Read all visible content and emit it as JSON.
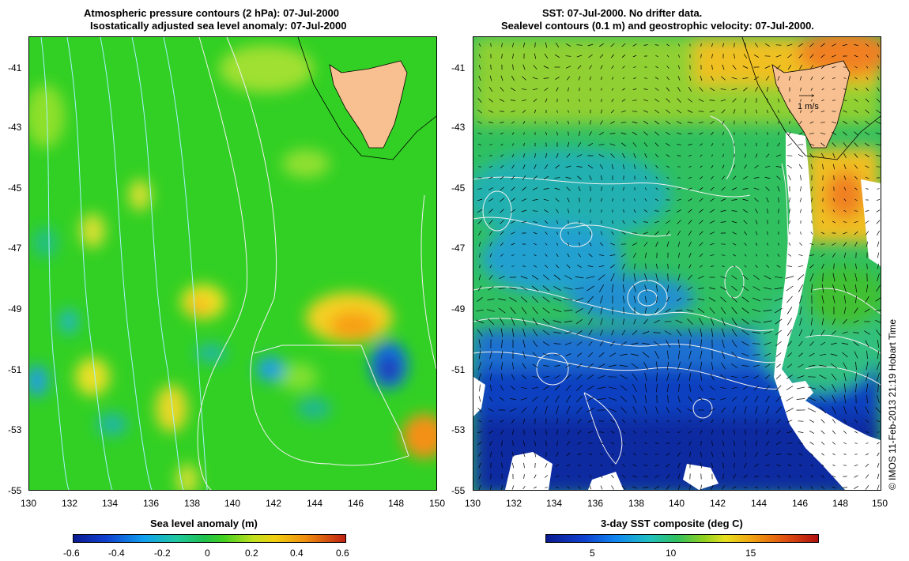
{
  "left_panel": {
    "title_line1": "Atmospheric pressure contours (2 hPa): 07-Jul-2000",
    "title_line2": "Isostatically adjusted sea level anomaly: 07-Jul-2000",
    "lat_ticks": [
      "-41",
      "-43",
      "-45",
      "-47",
      "-49",
      "-51",
      "-53",
      "-55"
    ],
    "lon_ticks": [
      "130",
      "132",
      "134",
      "136",
      "138",
      "140",
      "142",
      "144",
      "146",
      "148",
      "150"
    ],
    "colorbar_label": "Sea level anomaly (m)",
    "colorbar_ticks": [
      "-0.6",
      "-0.4",
      "-0.2",
      "0",
      "0.2",
      "0.4",
      "0.6"
    ],
    "colorbar_range": [
      -0.6,
      0.6
    ]
  },
  "right_panel": {
    "title_line1": "SST: 07-Jul-2000. No drifter data.",
    "title_line2": "Sealevel contours (0.1 m) and geostrophic velocity: 07-Jul-2000.",
    "lat_ticks": [
      "-41",
      "-43",
      "-45",
      "-47",
      "-49",
      "-51",
      "-53",
      "-55"
    ],
    "lon_ticks": [
      "130",
      "132",
      "134",
      "136",
      "138",
      "140",
      "142",
      "144",
      "146",
      "148",
      "150"
    ],
    "velocity_scale_label": "1 m/s",
    "colorbar_label": "3-day SST composite (deg C)",
    "colorbar_ticks": [
      "5",
      "10",
      "15"
    ],
    "colorbar_range": [
      2,
      19
    ]
  },
  "map_extent": {
    "lon": [
      130,
      150
    ],
    "lat": [
      -55,
      -40
    ]
  },
  "credit": "© IMOS 11-Feb-2013 21:19 Hobart Time",
  "colors": {
    "land": "#f8c090",
    "sla_background": "#30d020",
    "sst_cold": "#0a2aa0",
    "sst_warm": "#f08020"
  }
}
